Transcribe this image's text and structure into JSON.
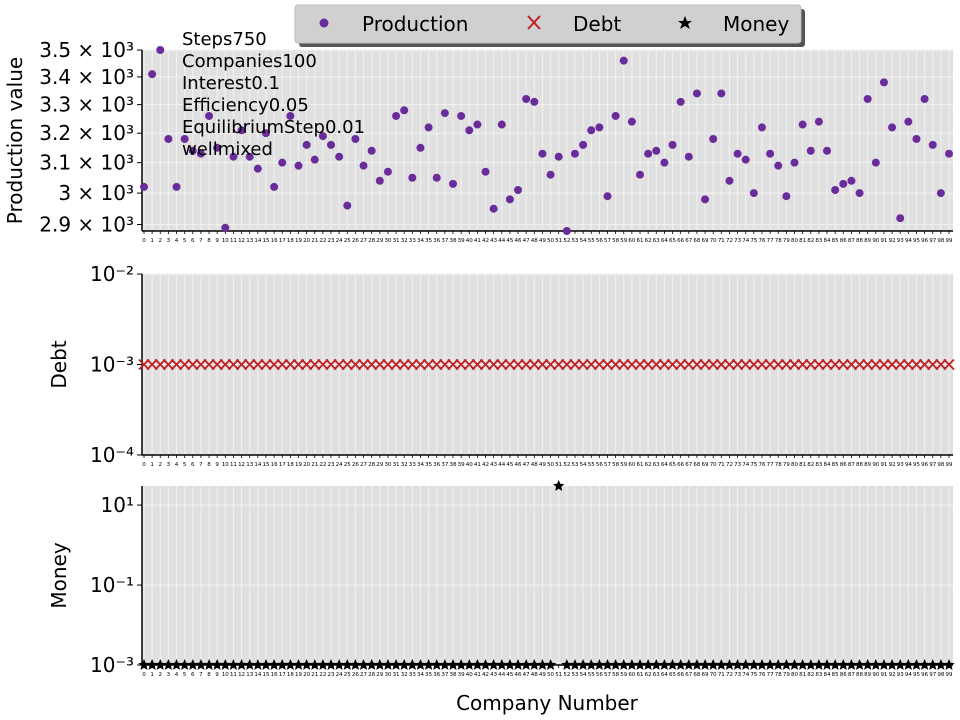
{
  "legend": {
    "placement": "top-center",
    "entries": [
      {
        "label": "Production",
        "marker": "dot-icon",
        "color": "#6a2c9a"
      },
      {
        "label": "Debt",
        "marker": "cross-icon",
        "color": "#c02020"
      },
      {
        "label": "Money",
        "marker": "star-icon",
        "color": "#000000"
      }
    ]
  },
  "annotation_lines": [
    "Steps750",
    "Companies100",
    "Interest0.1",
    "Efficiency0.05",
    "EquilibriumStep0.01",
    "wellmixed"
  ],
  "xlabel": "Company Number",
  "colors": {
    "panel_bg": "#e0e0e0",
    "grid": "#f2f2f2",
    "production": "#6a2c9a",
    "debt": "#c02020",
    "money": "#000000"
  },
  "chart_data": [
    {
      "type": "scatter",
      "series": [
        {
          "name": "Production",
          "x": [
            0,
            1,
            2,
            3,
            4,
            5,
            6,
            7,
            8,
            9,
            10,
            11,
            12,
            13,
            14,
            15,
            16,
            17,
            18,
            19,
            20,
            21,
            22,
            23,
            24,
            25,
            26,
            27,
            28,
            29,
            30,
            31,
            32,
            33,
            34,
            35,
            36,
            37,
            38,
            39,
            40,
            41,
            42,
            43,
            44,
            45,
            46,
            47,
            48,
            49,
            50,
            51,
            52,
            53,
            54,
            55,
            56,
            57,
            58,
            59,
            60,
            61,
            62,
            63,
            64,
            65,
            66,
            67,
            68,
            69,
            70,
            71,
            72,
            73,
            74,
            75,
            76,
            77,
            78,
            79,
            80,
            81,
            82,
            83,
            84,
            85,
            86,
            87,
            88,
            89,
            90,
            91,
            92,
            93,
            94,
            95,
            96,
            97,
            98,
            99
          ],
          "values": [
            3020,
            3410,
            3500,
            3180,
            3020,
            3180,
            3140,
            3130,
            3260,
            3150,
            2890,
            3120,
            3210,
            3120,
            3080,
            3200,
            3020,
            3100,
            3260,
            3090,
            3160,
            3110,
            3190,
            3160,
            3120,
            2960,
            3180,
            3090,
            3140,
            3040,
            3070,
            3260,
            3280,
            3050,
            3150,
            3220,
            3050,
            3270,
            3030,
            3260,
            3210,
            3230,
            3070,
            2950,
            3230,
            2980,
            3010,
            3320,
            3310,
            3130,
            3060,
            3120,
            2880,
            3130,
            3160,
            3210,
            3220,
            2990,
            3260,
            3460,
            3240,
            3060,
            3130,
            3140,
            3100,
            3160,
            3310,
            3120,
            3340,
            2980,
            3180,
            3340,
            3040,
            3130,
            3110,
            3000,
            3220,
            3130,
            3090,
            2990,
            3100,
            3230,
            3140,
            3240,
            3140,
            3010,
            3030,
            3040,
            3000,
            3320,
            3100,
            3380,
            3220,
            2920,
            3240,
            3180,
            3320,
            3160,
            3000,
            3130
          ]
        }
      ],
      "ylabel": "Production value",
      "yscale": "log",
      "ylim": [
        2880,
        3500
      ],
      "yticks": [
        2900,
        3000,
        3100,
        3200,
        3300,
        3400,
        3500
      ],
      "ytick_labels": [
        "2.9 × 10³",
        "3 × 10³",
        "3.1 × 10³",
        "3.2 × 10³",
        "3.3 × 10³",
        "3.4 × 10³",
        "3.5 × 10³"
      ],
      "xlim": [
        0,
        99
      ]
    },
    {
      "type": "scatter",
      "series": [
        {
          "name": "Debt",
          "constant_value": 0.001,
          "count": 100
        }
      ],
      "ylabel": "Debt",
      "yscale": "log",
      "ylim": [
        0.0001,
        0.01
      ],
      "yticks": [
        0.0001,
        0.001,
        0.01
      ],
      "ytick_labels": [
        "10⁻⁴",
        "10⁻³",
        "10⁻²"
      ],
      "xlim": [
        0,
        99
      ]
    },
    {
      "type": "scatter",
      "series": [
        {
          "name": "Money",
          "baseline_value": 0.001,
          "outlier_index": 51,
          "outlier_value": 30,
          "count": 100
        }
      ],
      "ylabel": "Money",
      "yscale": "log",
      "ylim": [
        0.001,
        30
      ],
      "yticks": [
        0.001,
        0.1,
        10
      ],
      "ytick_labels": [
        "10⁻³",
        "10⁻¹",
        "10¹"
      ],
      "xlim": [
        0,
        99
      ]
    }
  ]
}
